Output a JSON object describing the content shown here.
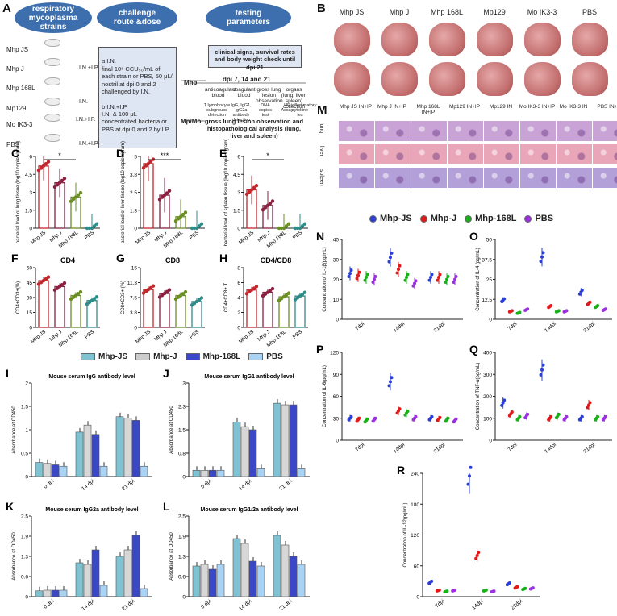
{
  "panelA": {
    "label": "A",
    "oval1": "respiratory\nmycoplasma\nstrains",
    "oval2": "challenge\nroute &dose",
    "oval3": "testing\nparameters",
    "strains": [
      "Mhp JS",
      "Mhp J",
      "Mhp 168L",
      "Mp129",
      "Mo IK3-3",
      "PBS"
    ],
    "routes": [
      "I.N.+I.P.",
      "I.N.",
      "I.N.+I.P.",
      "I.N.+I.P."
    ],
    "boxA": "a I.N.\nfinal 10⁸ CCU₅₀/mL of each strain or PBS, 50 μL/ nostril at dpi 0 and 2 challenged by I.N.",
    "boxB": "b I.N.+I.P.\nI.N. & 100 μL concentrated bacteria or PBS at dpi 0 and 2 by I.P.",
    "mhpArrow": "Mhp",
    "mpmoArrow": "Mp/Mo",
    "clinical": "clinical signs, survival rates and body weight check until dpi 21",
    "dpi": "dpi 7, 14 and 21",
    "params": [
      "anticoagulant blood",
      "coagulant blood",
      "gross lung lesion observation",
      "organs (lung, liver, spleen) collection"
    ],
    "sub": [
      "T lymphocyte subgroups detection",
      "IgG, IgG1, IgG2a antibody detection",
      "DNA copies test",
      "HE Assay",
      "inflammatory cytokine tes"
    ],
    "final": "gross lung lesion observation and histopathological analysis (lung, liver and spleen)"
  },
  "panelB": {
    "label": "B",
    "groups": [
      "Mhp JS",
      "Mhp J",
      "Mhp 168L",
      "Mp129",
      "Mo IK3-3",
      "PBS"
    ]
  },
  "panelM": {
    "label": "M",
    "groups": [
      "Mhp JS IN+IP",
      "Mhp J IN+IP",
      "Mhp 168L IN+IP",
      "Mp129 IN+IP",
      "Mp129 IN",
      "Mo IK3-3 IN+IP",
      "Mo IK3-3 IN",
      "PBS IN+IP"
    ],
    "rows": [
      "lung",
      "liver",
      "spleen"
    ]
  },
  "colors": {
    "js": "#c1272d",
    "j": "#8b2040",
    "l168": "#6b8e23",
    "pbs": "#2e8b88",
    "mjs": "#2a3fd6",
    "mj": "#e01a1a",
    "m168": "#19b019",
    "mpbs": "#9b30e0"
  },
  "chart_data": [
    {
      "panel": "C",
      "type": "scatter",
      "ylabel": "bacterial load of lung tissue (log10 copies/gram)",
      "categories": [
        "Mhp JS",
        "Mhp J",
        "Mhp 168L",
        "PBS"
      ],
      "values": [
        5.2,
        3.8,
        2.6,
        0.0
      ],
      "ylim": [
        0,
        6
      ],
      "sig": "*"
    },
    {
      "panel": "D",
      "type": "scatter",
      "ylabel": "bacterial load of liver tissue (log10 copies/gram)",
      "categories": [
        "Mhp JS",
        "Mhp J",
        "Mhp 168L",
        "PBS"
      ],
      "values": [
        4.5,
        2.3,
        0.8,
        0.0
      ],
      "ylim": [
        0,
        5
      ],
      "sig": "***"
    },
    {
      "panel": "E",
      "type": "scatter",
      "ylabel": "bacterial load of spleen tissue (log10 copies/gram)",
      "categories": [
        "Mhp JS",
        "Mhp J",
        "Mhp 168L",
        "PBS"
      ],
      "values": [
        3.2,
        1.9,
        0.0,
        0.0
      ],
      "ylim": [
        0,
        6
      ],
      "sig": "*"
    },
    {
      "panel": "F",
      "type": "bar",
      "title": "CD4",
      "ylabel": "CD4+CD3+(%)",
      "categories": [
        "Mhp JS",
        "Mhp J",
        "Mhp 168L",
        "PBS"
      ],
      "values": [
        47,
        41,
        32,
        27
      ],
      "ylim": [
        0,
        60
      ]
    },
    {
      "panel": "G",
      "type": "bar",
      "title": "CD8",
      "ylabel": "CD8+CD3+ (%)",
      "categories": [
        "Mhp JS",
        "Mhp J",
        "Mhp 168L",
        "PBS"
      ],
      "values": [
        9.5,
        8.5,
        8.0,
        6.5
      ],
      "ylim": [
        0,
        15
      ]
    },
    {
      "panel": "H",
      "type": "bar",
      "title": "CD4/CD8",
      "ylabel": "CD4+CD8+ T",
      "categories": [
        "Mhp JS",
        "Mhp J",
        "Mhp 168L",
        "PBS"
      ],
      "values": [
        5.0,
        4.7,
        4.1,
        4.2
      ],
      "ylim": [
        0,
        8
      ]
    },
    {
      "panel": "I",
      "type": "bar",
      "title": "Mouse serum IgG antibody level",
      "ylabel": "Absorbance at OD450",
      "categories": [
        "0 dpi",
        "14 dpi",
        "21 dpi"
      ],
      "ylim": [
        0,
        2.0
      ],
      "series": [
        {
          "name": "Mhp-JS",
          "values": [
            0.3,
            0.95,
            1.28
          ]
        },
        {
          "name": "Mhp-J",
          "values": [
            0.28,
            1.1,
            1.25
          ]
        },
        {
          "name": "Mhp-168L",
          "values": [
            0.25,
            0.9,
            1.2
          ]
        },
        {
          "name": "PBS",
          "values": [
            0.22,
            0.22,
            0.22
          ]
        }
      ]
    },
    {
      "panel": "J",
      "type": "bar",
      "title": "Mouse serum IgG1 antibody level",
      "ylabel": "Absorbance at OD450",
      "categories": [
        "0 dpi",
        "14 dpi",
        "21 dpi"
      ],
      "ylim": [
        0,
        3.0
      ],
      "series": [
        {
          "name": "Mhp-JS",
          "values": [
            0.2,
            1.75,
            2.35
          ]
        },
        {
          "name": "Mhp-J",
          "values": [
            0.2,
            1.6,
            2.3
          ]
        },
        {
          "name": "Mhp-168L",
          "values": [
            0.2,
            1.5,
            2.3
          ]
        },
        {
          "name": "PBS",
          "values": [
            0.2,
            0.25,
            0.25
          ]
        }
      ]
    },
    {
      "panel": "K",
      "type": "bar",
      "title": "Mouse serum IgG2a antibody level",
      "ylabel": "Absorbance at OD450",
      "categories": [
        "0 dpi",
        "14 dpi",
        "21 dpi"
      ],
      "ylim": [
        0,
        2.5
      ],
      "series": [
        {
          "name": "Mhp-JS",
          "values": [
            0.18,
            1.05,
            1.25
          ]
        },
        {
          "name": "Mhp-J",
          "values": [
            0.2,
            1.0,
            1.45
          ]
        },
        {
          "name": "Mhp-168L",
          "values": [
            0.2,
            1.45,
            1.9
          ]
        },
        {
          "name": "PBS",
          "values": [
            0.2,
            0.35,
            0.25
          ]
        }
      ]
    },
    {
      "panel": "L",
      "type": "bar",
      "title": "Mouse serum IgG1/2a antibody level",
      "ylabel": "Absorbance at OD450",
      "categories": [
        "0 dpi",
        "14 dpi",
        "21 dpi"
      ],
      "ylim": [
        0,
        2.5
      ],
      "series": [
        {
          "name": "Mhp-JS",
          "values": [
            0.95,
            1.8,
            1.9
          ]
        },
        {
          "name": "Mhp-J",
          "values": [
            1.0,
            1.65,
            1.6
          ]
        },
        {
          "name": "Mhp-168L",
          "values": [
            0.85,
            1.1,
            1.25
          ]
        },
        {
          "name": "PBS",
          "values": [
            1.0,
            0.95,
            1.0
          ]
        }
      ]
    },
    {
      "panel": "N",
      "type": "scatter",
      "ylabel": "Concentration of IL-1β(pg/mL)",
      "categories": [
        "7dpi",
        "14dpi",
        "21dpi"
      ],
      "ylim": [
        0,
        40
      ],
      "series": [
        {
          "name": "Mhp-JS",
          "values": [
            23,
            31,
            21
          ]
        },
        {
          "name": "Mhp-J",
          "values": [
            22,
            25,
            21
          ]
        },
        {
          "name": "Mhp-168L",
          "values": [
            21,
            21,
            20
          ]
        },
        {
          "name": "PBS",
          "values": [
            20,
            18,
            20
          ]
        }
      ]
    },
    {
      "panel": "O",
      "type": "scatter",
      "ylabel": "Concentration of IL-4 (pg/mL)",
      "categories": [
        "7dpi",
        "14dpi",
        "21dpi"
      ],
      "ylim": [
        0,
        50
      ],
      "series": [
        {
          "name": "Mhp-JS",
          "values": [
            12,
            39,
            17
          ]
        },
        {
          "name": "Mhp-J",
          "values": [
            5,
            8,
            10
          ]
        },
        {
          "name": "Mhp-168L",
          "values": [
            4,
            5,
            8
          ]
        },
        {
          "name": "PBS",
          "values": [
            6,
            5,
            6
          ]
        }
      ]
    },
    {
      "panel": "P",
      "type": "scatter",
      "ylabel": "Concentration of IL-6(pg/mL)",
      "categories": [
        "7dpi",
        "14dpi",
        "21dpi"
      ],
      "ylim": [
        0,
        120
      ],
      "series": [
        {
          "name": "Mhp-JS",
          "values": [
            30,
            80,
            30
          ]
        },
        {
          "name": "Mhp-J",
          "values": [
            28,
            40,
            29
          ]
        },
        {
          "name": "Mhp-168L",
          "values": [
            27,
            37,
            28
          ]
        },
        {
          "name": "PBS",
          "values": [
            28,
            30,
            27
          ]
        }
      ]
    },
    {
      "panel": "Q",
      "type": "scatter",
      "ylabel": "Concentration of TNF-α(pg/mL)",
      "categories": [
        "7dpi",
        "14dpi",
        "21dpi"
      ],
      "ylim": [
        0,
        400
      ],
      "series": [
        {
          "name": "Mhp-JS",
          "values": [
            170,
            320,
            100
          ]
        },
        {
          "name": "Mhp-J",
          "values": [
            120,
            100,
            160
          ]
        },
        {
          "name": "Mhp-168L",
          "values": [
            100,
            110,
            100
          ]
        },
        {
          "name": "PBS",
          "values": [
            110,
            100,
            100
          ]
        }
      ]
    },
    {
      "panel": "R",
      "type": "scatter",
      "ylabel": "Concentration of IL-12(pg/mL)",
      "categories": [
        "7dpi",
        "14dpi",
        "21dpi"
      ],
      "ylim": [
        0,
        240
      ],
      "series": [
        {
          "name": "Mhp-JS",
          "values": [
            28,
            235,
            25
          ]
        },
        {
          "name": "Mhp-J",
          "values": [
            12,
            80,
            18
          ]
        },
        {
          "name": "Mhp-168L",
          "values": [
            10,
            12,
            15
          ]
        },
        {
          "name": "PBS",
          "values": [
            12,
            10,
            16
          ]
        }
      ]
    }
  ],
  "legendIJKL": [
    "Mhp-JS",
    "Mhp-J",
    "Mhp-168L",
    "PBS"
  ],
  "legendNR": [
    "Mhp-JS",
    "Mhp-J",
    "Mhp-168L",
    "PBS"
  ]
}
